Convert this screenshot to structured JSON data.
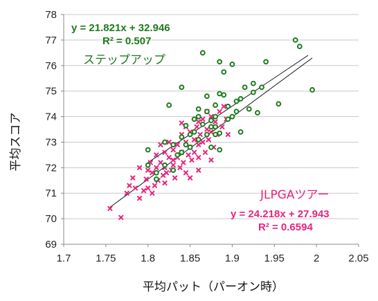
{
  "chart_data": {
    "type": "scatter",
    "xlabel": "平均パット（パーオン時）",
    "ylabel": "平均スコア",
    "xlim": [
      1.7,
      2.05
    ],
    "ylim": [
      69,
      78
    ],
    "xticks": [
      "1.7",
      "1.75",
      "1.8",
      "1.85",
      "1.9",
      "1.95",
      "2",
      "2.05"
    ],
    "yticks": [
      "69",
      "70",
      "71",
      "72",
      "73",
      "74",
      "75",
      "76",
      "77",
      "78"
    ],
    "grid": "horizontal",
    "colors": {
      "step": "#1e7a1e",
      "jlpga": "#e8237e",
      "trend": "#000000"
    },
    "series": [
      {
        "name": "ステップアップ",
        "marker": "circle",
        "equation": "y = 21.821x + 32.946",
        "r2": "R² = 0.507",
        "trend": [
          [
            1.8,
            72.2
          ],
          [
            1.99,
            76.4
          ]
        ],
        "points": [
          [
            1.8,
            72.7
          ],
          [
            1.8,
            72.1
          ],
          [
            1.81,
            71.8
          ],
          [
            1.81,
            71.55
          ],
          [
            1.82,
            72.1
          ],
          [
            1.82,
            73.0
          ],
          [
            1.825,
            74.45
          ],
          [
            1.83,
            71.9
          ],
          [
            1.83,
            72.9
          ],
          [
            1.835,
            72.5
          ],
          [
            1.84,
            75.15
          ],
          [
            1.84,
            73.2
          ],
          [
            1.84,
            72.6
          ],
          [
            1.845,
            73.65
          ],
          [
            1.845,
            72.9
          ],
          [
            1.85,
            73.3
          ],
          [
            1.85,
            72.8
          ],
          [
            1.855,
            73.9
          ],
          [
            1.855,
            73.4
          ],
          [
            1.86,
            74.3
          ],
          [
            1.86,
            73.1
          ],
          [
            1.865,
            76.5
          ],
          [
            1.865,
            73.7
          ],
          [
            1.87,
            74.8
          ],
          [
            1.87,
            74.2
          ],
          [
            1.875,
            73.6
          ],
          [
            1.875,
            72.8
          ],
          [
            1.875,
            73.85
          ],
          [
            1.88,
            74.0
          ],
          [
            1.88,
            73.3
          ],
          [
            1.88,
            73.6
          ],
          [
            1.885,
            76.15
          ],
          [
            1.885,
            74.9
          ],
          [
            1.885,
            73.35
          ],
          [
            1.885,
            72.7
          ],
          [
            1.89,
            75.75
          ],
          [
            1.89,
            74.85
          ],
          [
            1.895,
            73.9
          ],
          [
            1.895,
            74.4
          ],
          [
            1.9,
            76.05
          ],
          [
            1.9,
            74.0
          ],
          [
            1.905,
            74.6
          ],
          [
            1.905,
            74.2
          ],
          [
            1.91,
            74.7
          ],
          [
            1.91,
            73.4
          ],
          [
            1.915,
            75.15
          ],
          [
            1.92,
            74.3
          ],
          [
            1.925,
            74.95
          ],
          [
            1.925,
            75.3
          ],
          [
            1.93,
            74.15
          ],
          [
            1.935,
            75.15
          ],
          [
            1.94,
            76.15
          ],
          [
            1.955,
            74.5
          ],
          [
            1.975,
            77.0
          ],
          [
            1.98,
            76.75
          ],
          [
            1.995,
            75.05
          ],
          [
            1.88,
            74.45
          ],
          [
            1.87,
            73.3
          ],
          [
            1.86,
            74.0
          ]
        ]
      },
      {
        "name": "JLPGAツアー",
        "marker": "x",
        "equation": "y = 24.218x + 27.943",
        "r2": "R² = 0.6594",
        "trend": [
          [
            1.755,
            70.45
          ],
          [
            1.995,
            76.3
          ]
        ],
        "points": [
          [
            1.755,
            70.4
          ],
          [
            1.768,
            70.05
          ],
          [
            1.775,
            71.0
          ],
          [
            1.778,
            71.3
          ],
          [
            1.782,
            71.6
          ],
          [
            1.785,
            71.2
          ],
          [
            1.79,
            72.0
          ],
          [
            1.795,
            71.1
          ],
          [
            1.798,
            71.55
          ],
          [
            1.8,
            71.2
          ],
          [
            1.8,
            71.9
          ],
          [
            1.803,
            72.2
          ],
          [
            1.805,
            71.8
          ],
          [
            1.808,
            71.3
          ],
          [
            1.81,
            72.5
          ],
          [
            1.81,
            72.0
          ],
          [
            1.812,
            71.5
          ],
          [
            1.815,
            72.9
          ],
          [
            1.815,
            72.2
          ],
          [
            1.818,
            71.7
          ],
          [
            1.82,
            72.6
          ],
          [
            1.82,
            72.0
          ],
          [
            1.822,
            71.8
          ],
          [
            1.825,
            73.0
          ],
          [
            1.825,
            72.4
          ],
          [
            1.828,
            71.9
          ],
          [
            1.83,
            72.7
          ],
          [
            1.83,
            72.1
          ],
          [
            1.832,
            71.6
          ],
          [
            1.835,
            72.9
          ],
          [
            1.835,
            72.4
          ],
          [
            1.838,
            72.0
          ],
          [
            1.84,
            73.3
          ],
          [
            1.84,
            72.6
          ],
          [
            1.842,
            72.2
          ],
          [
            1.845,
            71.8
          ],
          [
            1.845,
            73.0
          ],
          [
            1.848,
            72.5
          ],
          [
            1.85,
            73.4
          ],
          [
            1.85,
            72.8
          ],
          [
            1.852,
            72.3
          ],
          [
            1.855,
            73.1
          ],
          [
            1.855,
            72.6
          ],
          [
            1.858,
            73.6
          ],
          [
            1.86,
            72.9
          ],
          [
            1.86,
            72.4
          ],
          [
            1.862,
            73.3
          ],
          [
            1.865,
            73.9
          ],
          [
            1.865,
            73.0
          ],
          [
            1.868,
            72.6
          ],
          [
            1.87,
            73.5
          ],
          [
            1.872,
            73.1
          ],
          [
            1.875,
            74.0
          ],
          [
            1.875,
            73.4
          ],
          [
            1.878,
            72.8
          ],
          [
            1.88,
            73.8
          ],
          [
            1.882,
            73.3
          ],
          [
            1.885,
            74.2
          ],
          [
            1.888,
            73.6
          ],
          [
            1.89,
            74.4
          ],
          [
            1.893,
            73.9
          ],
          [
            1.895,
            73.3
          ],
          [
            1.84,
            73.75
          ],
          [
            1.845,
            73.6
          ],
          [
            1.83,
            72.3
          ],
          [
            1.86,
            71.9
          ],
          [
            1.85,
            71.6
          ],
          [
            1.82,
            71.4
          ],
          [
            1.805,
            71.0
          ],
          [
            1.79,
            70.8
          ],
          [
            1.86,
            73.8
          ],
          [
            1.875,
            72.3
          ],
          [
            1.87,
            74.2
          ]
        ]
      }
    ]
  }
}
